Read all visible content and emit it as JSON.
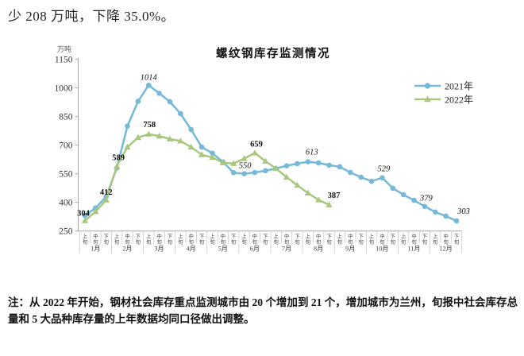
{
  "page": {
    "intro_text": "少 208 万吨，下降 35.0%。",
    "note_prefix": "注：",
    "note_text": "从 2022 年开始，钢材社会库存重点监测城市由 20 个增加到 21 个，增加城市为兰州，旬报中社会库存总量和 5 大品种库存量的上年数据均同口径做出调整。"
  },
  "chart_data": {
    "type": "line",
    "title": "螺纹钢库存监测情况",
    "unit_label": "万吨",
    "y_axis": {
      "min": 250,
      "max": 1150,
      "step": 150,
      "ticks": [
        1150,
        1000,
        850,
        700,
        550,
        400,
        250
      ]
    },
    "x_axis": {
      "months": [
        "1月",
        "2月",
        "3月",
        "4月",
        "5月",
        "6月",
        "7月",
        "8月",
        "9月",
        "10月",
        "11月",
        "12月"
      ],
      "periods": [
        "上旬",
        "中旬",
        "下旬"
      ]
    },
    "legend_position": "right",
    "grid": false,
    "series": [
      {
        "name": "2021年",
        "color": "#74b9d8",
        "marker": "circle",
        "label_style": "italic",
        "values": [
          331,
          371,
          430,
          580,
          800,
          930,
          1014,
          972,
          928,
          865,
          782,
          690,
          658,
          612,
          556,
          550,
          557,
          566,
          578,
          592,
          603,
          613,
          607,
          595,
          587,
          557,
          532,
          511,
          529,
          474,
          440,
          411,
          379,
          349,
          328,
          303
        ],
        "point_labels": [
          {
            "index": 6,
            "text": "1014",
            "dx": 0,
            "dy": -7
          },
          {
            "index": 15,
            "text": "550",
            "dx": 1,
            "dy": -7
          },
          {
            "index": 21,
            "text": "613",
            "dx": 5,
            "dy": -9
          },
          {
            "index": 28,
            "text": "529",
            "dx": 2,
            "dy": -8
          },
          {
            "index": 32,
            "text": "379",
            "dx": 2,
            "dy": -7
          },
          {
            "index": 35,
            "text": "303",
            "dx": 9,
            "dy": -9
          }
        ]
      },
      {
        "name": "2022年",
        "color": "#a9c87e",
        "marker": "triangle",
        "label_style": "bold",
        "values": [
          304,
          352,
          412,
          589,
          690,
          740,
          758,
          748,
          732,
          722,
          690,
          650,
          636,
          608,
          604,
          630,
          659,
          616,
          578,
          532,
          490,
          449,
          413,
          387
        ],
        "point_labels": [
          {
            "index": 0,
            "text": "304",
            "dx": -2,
            "dy": -6
          },
          {
            "index": 2,
            "text": "412",
            "dx": 0,
            "dy": -7
          },
          {
            "index": 3,
            "text": "589",
            "dx": 2,
            "dy": -8
          },
          {
            "index": 6,
            "text": "758",
            "dx": 1,
            "dy": -9
          },
          {
            "index": 16,
            "text": "659",
            "dx": 2,
            "dy": -8
          },
          {
            "index": 23,
            "text": "387",
            "dx": 6,
            "dy": -9
          }
        ]
      }
    ]
  }
}
